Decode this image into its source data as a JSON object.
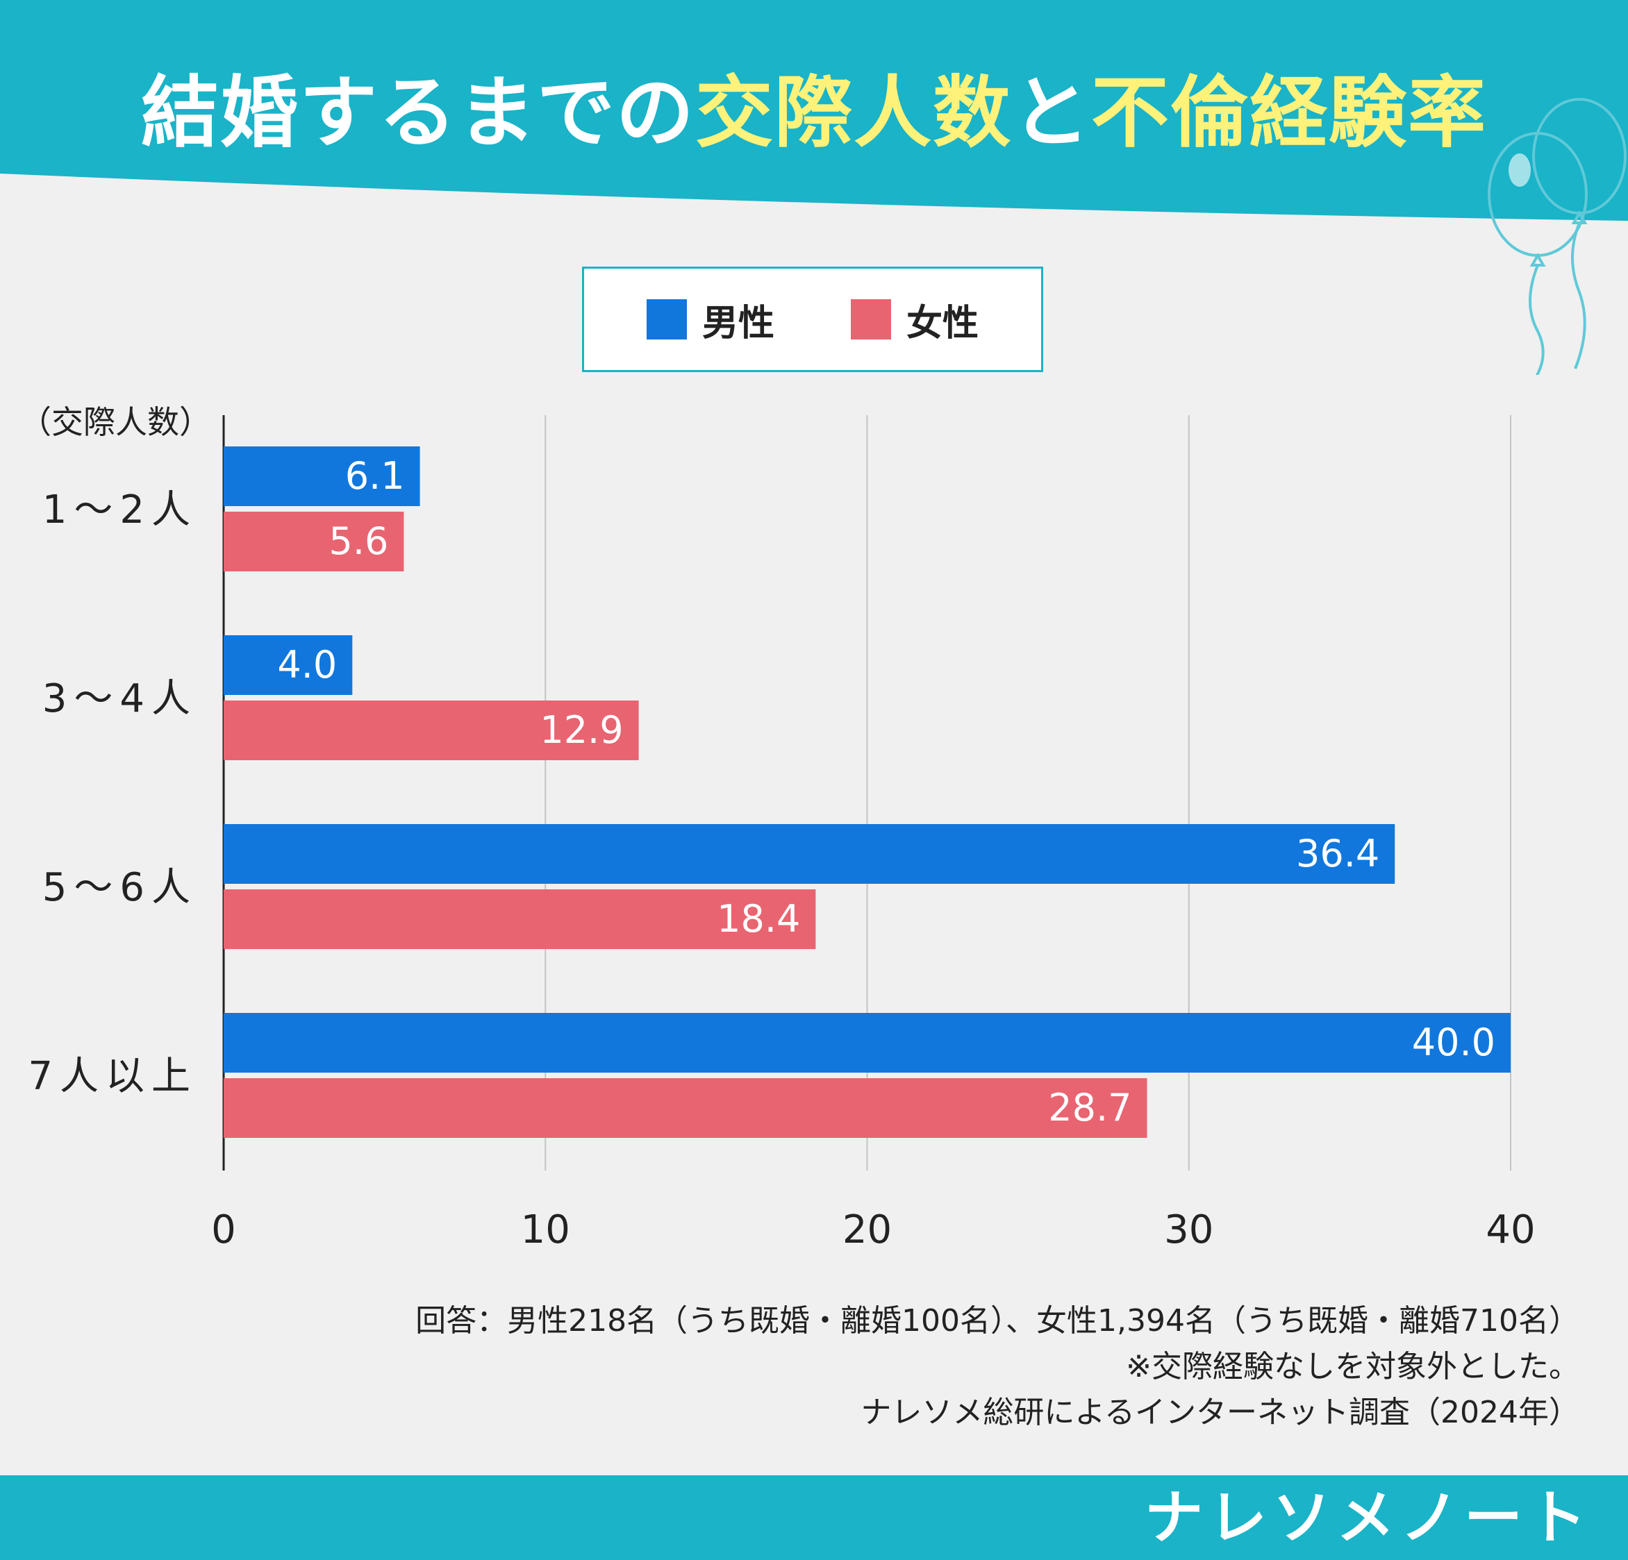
{
  "title": {
    "part1": "結婚するまでの",
    "part2": "交際人数",
    "part3": "と",
    "part4": "不倫経験率"
  },
  "colors": {
    "header": "#1ab3c8",
    "male": "#1177dd",
    "female": "#e86471",
    "title_accent": "#fff27a",
    "background": "#f0f0f0"
  },
  "legend": {
    "male": "男性",
    "female": "女性"
  },
  "chart_data": {
    "type": "bar",
    "orientation": "horizontal",
    "ylabel": "（交際人数）",
    "categories": [
      "1～2人",
      "3～4人",
      "5～6人",
      "7人以上"
    ],
    "series": [
      {
        "name": "男性",
        "values": [
          6.1,
          4.0,
          36.4,
          40.0
        ],
        "labels": [
          "6.1",
          "4.0",
          "36.4",
          "40.0"
        ]
      },
      {
        "name": "女性",
        "values": [
          5.6,
          12.9,
          18.4,
          28.7
        ],
        "labels": [
          "5.6",
          "12.9",
          "18.4",
          "28.7"
        ]
      }
    ],
    "xlim": [
      0,
      40
    ],
    "xticks": [
      "0",
      "10",
      "20",
      "30",
      "40"
    ],
    "grid": true,
    "legend_position": "top-center"
  },
  "notes": [
    "回答：男性218名（うち既婚・離婚100名）、女性1,394名（うち既婚・離婚710名）",
    "※交際経験なしを対象外とした。",
    "ナレソメ総研によるインターネット調査（2024年）"
  ],
  "brand": "ナレソメノート"
}
